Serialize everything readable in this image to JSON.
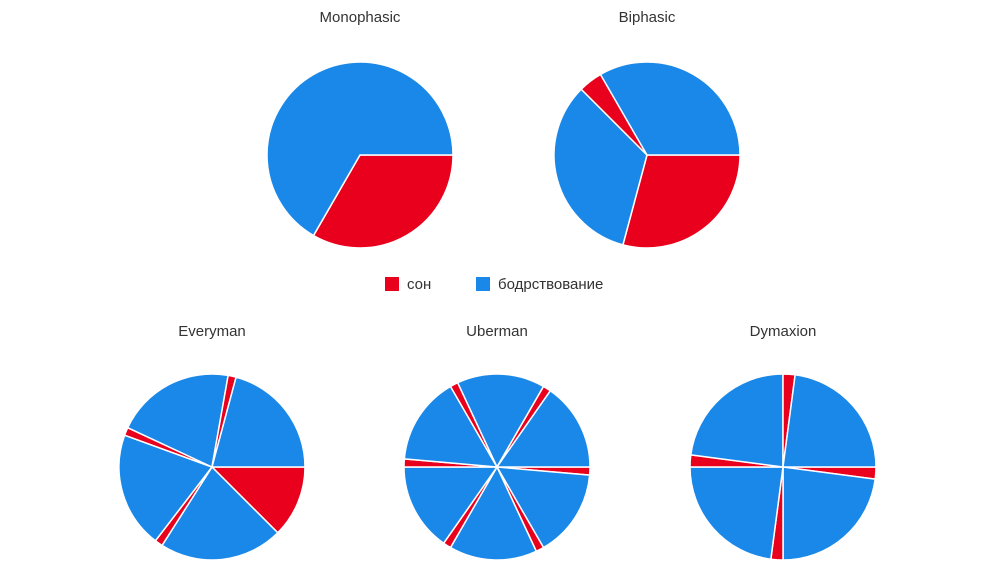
{
  "legend": [
    {
      "name": "сон",
      "color": "#e8001c"
    },
    {
      "name": "бодрствование",
      "color": "#1a88e8"
    }
  ],
  "chart_data": [
    {
      "type": "pie",
      "title": "Monophasic",
      "categories": [
        "сон",
        "бодрствование"
      ],
      "values": [
        480,
        960
      ]
    },
    {
      "type": "pie",
      "title": "Biphasic",
      "categories": [
        "сон",
        "бодрствование",
        "сон",
        "бодрствование"
      ],
      "values": [
        420,
        480,
        60,
        480
      ]
    },
    {
      "type": "pie",
      "title": "Everyman",
      "categories": [
        "сон",
        "бодрствование",
        "сон",
        "бодрствование",
        "сон",
        "бодрствование",
        "сон",
        "бодрствование"
      ],
      "values": [
        180,
        310,
        20,
        290,
        20,
        300,
        20,
        300
      ]
    },
    {
      "type": "pie",
      "title": "Uberman",
      "categories": [
        "сон",
        "бодрствование",
        "сон",
        "бодрствование",
        "сон",
        "бодрствование",
        "сон",
        "бодрствование",
        "сон",
        "бодрствование",
        "сон",
        "бодрствование"
      ],
      "values": [
        20,
        220,
        20,
        220,
        20,
        220,
        20,
        220,
        20,
        220,
        20,
        220
      ]
    },
    {
      "type": "pie",
      "title": "Dymaxion",
      "categories": [
        "сон",
        "бодрствование",
        "сон",
        "бодрствование",
        "сон",
        "бодрствование",
        "сон",
        "бодрствование"
      ],
      "values": [
        30,
        330,
        30,
        330,
        30,
        330,
        30,
        330
      ]
    }
  ]
}
